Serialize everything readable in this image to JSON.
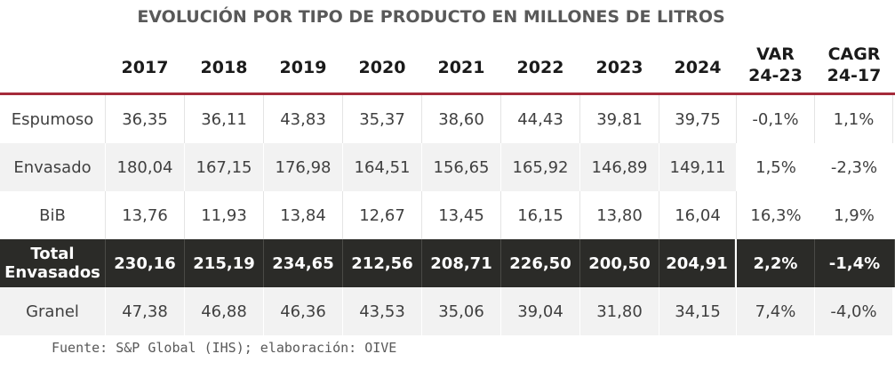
{
  "title": "EVOLUCIÓN POR TIPO DE PRODUCTO EN MILLONES DE LITROS",
  "columns": [
    "2017",
    "2018",
    "2019",
    "2020",
    "2021",
    "2022",
    "2023",
    "2024",
    "VAR\n24-23",
    "CAGR\n24-17"
  ],
  "rows": [
    {
      "label": "Espumoso",
      "values": [
        "36,35",
        "36,11",
        "43,83",
        "35,37",
        "38,60",
        "44,43",
        "39,81",
        "39,75",
        "-0,1%",
        "1,1%"
      ]
    },
    {
      "label": "Envasado",
      "values": [
        "180,04",
        "167,15",
        "176,98",
        "164,51",
        "156,65",
        "165,92",
        "146,89",
        "149,11",
        "1,5%",
        "-2,3%"
      ]
    },
    {
      "label": "BiB",
      "values": [
        "13,76",
        "11,93",
        "13,84",
        "12,67",
        "13,45",
        "16,15",
        "13,80",
        "16,04",
        "16,3%",
        "1,9%"
      ]
    },
    {
      "label": "Total\nEnvasados",
      "values": [
        "230,16",
        "215,19",
        "234,65",
        "212,56",
        "208,71",
        "226,50",
        "200,50",
        "204,91",
        "2,2%",
        "-1,4%"
      ]
    },
    {
      "label": "Granel",
      "values": [
        "47,38",
        "46,88",
        "46,36",
        "43,53",
        "35,06",
        "39,04",
        "31,80",
        "34,15",
        "7,4%",
        "-4,0%"
      ]
    }
  ],
  "source": "Fuente: S&P Global (IHS); elaboración: OIVE"
}
